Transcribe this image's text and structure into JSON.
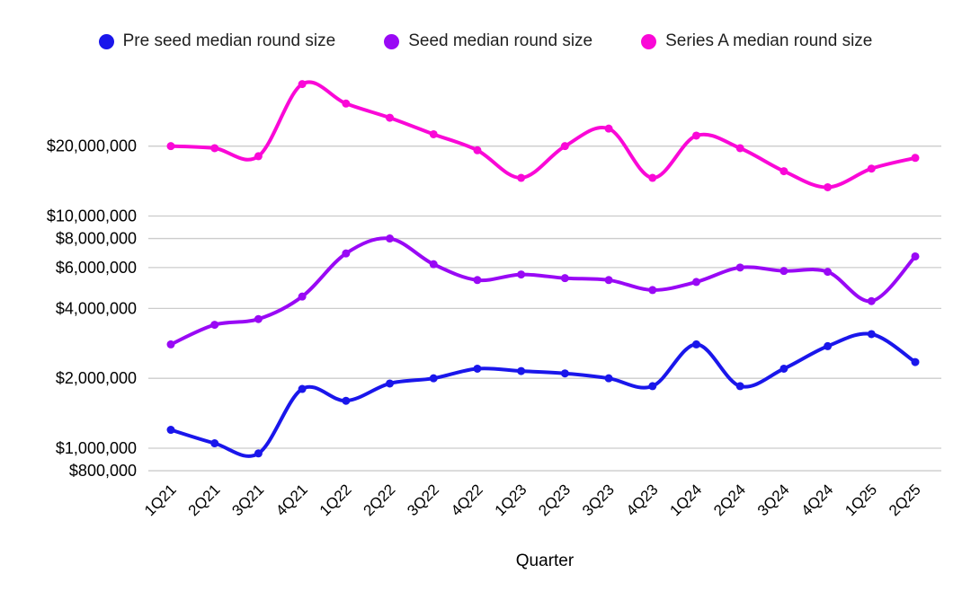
{
  "legend": {
    "position": "top"
  },
  "chart_data": {
    "type": "line",
    "smooth": true,
    "title": "",
    "xlabel": "Quarter",
    "ylabel": "",
    "y_scale": "log",
    "grid": "horizontal-only",
    "gridline_color": "#cccccc",
    "background_color": "#ffffff",
    "x_tick_rotation_deg": -45,
    "categories": [
      "1Q21",
      "2Q21",
      "3Q21",
      "4Q21",
      "1Q22",
      "2Q22",
      "3Q22",
      "4Q22",
      "1Q23",
      "2Q23",
      "3Q23",
      "4Q23",
      "1Q24",
      "2Q24",
      "3Q24",
      "4Q24",
      "1Q25",
      "2Q25"
    ],
    "y_ticks": [
      {
        "value": 800000,
        "label": "$800,000"
      },
      {
        "value": 1000000,
        "label": "$1,000,000"
      },
      {
        "value": 2000000,
        "label": "$2,000,000"
      },
      {
        "value": 4000000,
        "label": "$4,000,000"
      },
      {
        "value": 6000000,
        "label": "$6,000,000"
      },
      {
        "value": 8000000,
        "label": "$8,000,000"
      },
      {
        "value": 10000000,
        "label": "$10,000,000"
      },
      {
        "value": 20000000,
        "label": "$20,000,000"
      }
    ],
    "series": [
      {
        "name": "Pre seed median round size",
        "color": "#1a16eb",
        "values": [
          1200000,
          1050000,
          950000,
          1800000,
          1600000,
          1900000,
          2000000,
          2200000,
          2150000,
          2100000,
          2000000,
          1850000,
          2800000,
          1850000,
          2200000,
          2750000,
          3100000,
          2350000
        ]
      },
      {
        "name": "Seed median round size",
        "color": "#9909f5",
        "values": [
          2800000,
          3400000,
          3600000,
          4500000,
          6900000,
          8000000,
          6200000,
          5300000,
          5600000,
          5400000,
          5300000,
          4800000,
          5200000,
          6000000,
          5800000,
          5750000,
          4300000,
          6700000
        ]
      },
      {
        "name": "Series A median round size",
        "color": "#fa08d7",
        "values": [
          20000000,
          19600000,
          18100000,
          37000000,
          30500000,
          26500000,
          22500000,
          19200000,
          14600000,
          20000000,
          23800000,
          14600000,
          22200000,
          19600000,
          15600000,
          13300000,
          16000000,
          17800000
        ]
      }
    ]
  }
}
